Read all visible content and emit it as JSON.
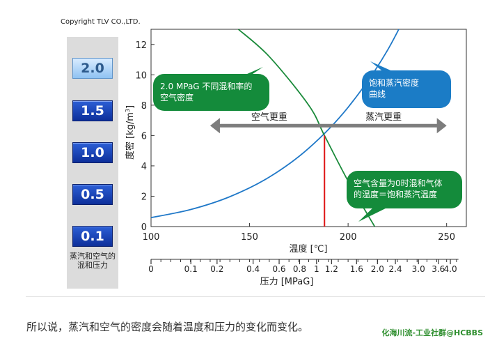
{
  "copyright": "Copyright TLV CO.,LTD.",
  "pressure_selector": {
    "items": [
      {
        "label": "2.0",
        "active": true
      },
      {
        "label": "1.5",
        "active": false
      },
      {
        "label": "1.0",
        "active": false
      },
      {
        "label": "0.5",
        "active": false
      },
      {
        "label": "0.1",
        "active": false
      }
    ],
    "caption_line1": "蒸汽和空气的",
    "caption_line2": "混和压力"
  },
  "chart_data": {
    "type": "line",
    "x_axis": {
      "label": "温度 [℃]",
      "range": [
        100,
        260
      ],
      "ticks": [
        100,
        150,
        200,
        250
      ]
    },
    "y_axis": {
      "label_text": "度密",
      "label_unit": "[kg/m",
      "label_sup": "3",
      "label_close": "]",
      "range": [
        0,
        13
      ],
      "ticks": [
        0,
        2,
        4,
        6,
        8,
        10,
        12
      ]
    },
    "pressure_axis": {
      "label": "压力 [MPaG]",
      "ticks": [
        {
          "label": "0",
          "temp": 100
        },
        {
          "label": "0.1",
          "temp": 120.2
        },
        {
          "label": "0.2",
          "temp": 133.5
        },
        {
          "label": "0.4",
          "temp": 151.8
        },
        {
          "label": "0.6",
          "temp": 165
        },
        {
          "label": "0.8",
          "temp": 175.4
        },
        {
          "label": "1",
          "temp": 184
        },
        {
          "label": "1.2",
          "temp": 191.6
        },
        {
          "label": "1.6",
          "temp": 204.3
        },
        {
          "label": "2.0",
          "temp": 214.9
        },
        {
          "label": "2.4",
          "temp": 224
        },
        {
          "label": "3.0",
          "temp": 235.7
        },
        {
          "label": "3.6",
          "temp": 245.8
        },
        {
          "label": "4.0",
          "temp": 251.9
        }
      ]
    },
    "series": [
      {
        "color": "#1f78c8",
        "x": [
          100,
          120,
          140,
          160,
          180,
          200,
          220,
          240
        ],
        "y": [
          0.59,
          1.12,
          1.97,
          3.26,
          5.16,
          7.86,
          11.62,
          16.76
        ]
      },
      {
        "color": "#1a8a3a",
        "x": [
          144.3,
          160,
          180,
          188,
          200,
          213.5
        ],
        "y": [
          13.0,
          11.2,
          8.0,
          6.0,
          3.0,
          0.0
        ]
      }
    ],
    "intersection": {
      "x": 188,
      "y": 6.0,
      "color": "#e02020"
    },
    "arrow": {
      "y": 6.65,
      "x_from": 130,
      "x_to": 250,
      "color": "#7d7d7d"
    },
    "annotations": {
      "air_heavier": "空气更重",
      "steam_heavier": "蒸汽更重",
      "green_callout": {
        "line1": "2.0 MPaG 不同混和率的",
        "line2": "空气密度",
        "color": "#148b3b"
      },
      "blue_callout": {
        "line1": "饱和蒸汽密度",
        "line2": "曲线",
        "color": "#1b7cc6"
      },
      "green_callout2": {
        "line1": "空气含量为0时混和气体",
        "line2": "的温度＝饱和蒸汽温度",
        "color": "#148b3b"
      }
    }
  },
  "footer": {
    "caption": "所以说，蒸汽和空气的密度会随着温度和压力的变化而变化。",
    "watermark": "化海川流-工业社群@HCBBS"
  }
}
